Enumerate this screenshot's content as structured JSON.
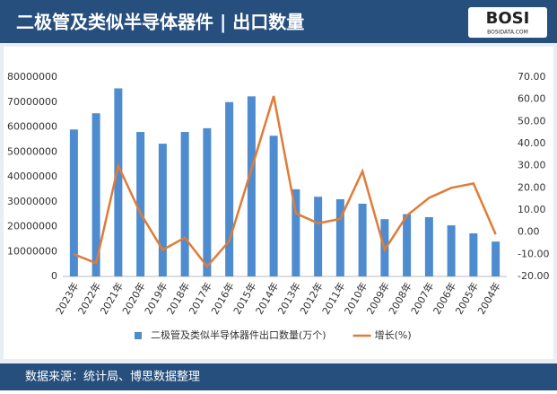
{
  "chart_data": {
    "type": "bar_line",
    "title": "二极管及类似半导体器件 | 出口数量",
    "logo": "BOSI",
    "logo_sub": "BOSIDATA.COM",
    "source": "数据来源：统计局、博思数据整理",
    "categories": [
      "2023年",
      "2022年",
      "2021年",
      "2020年",
      "2019年",
      "2018年",
      "2017年",
      "2016年",
      "2015年",
      "2014年",
      "2013年",
      "2012年",
      "2011年",
      "2010年",
      "2009年",
      "2008年",
      "2007年",
      "2006年",
      "2005年",
      "2004年"
    ],
    "series": [
      {
        "name": "二极管及类似半导体器件出口数量(万个)",
        "type": "bar",
        "color": "#4e8ccf",
        "values": [
          59000000,
          65500000,
          75500000,
          58000000,
          53300000,
          58000000,
          59500000,
          70000000,
          72300000,
          56500000,
          35000000,
          32000000,
          31000000,
          29200000,
          23000000,
          25000000,
          23800000,
          20500000,
          17300000,
          14000000
        ]
      },
      {
        "name": "增长(%)",
        "type": "line",
        "axis": "y2",
        "color": "#e07b39",
        "values": [
          -10,
          -14,
          30,
          8.5,
          -8,
          -2.5,
          -15.5,
          -4,
          28.5,
          61.5,
          8.5,
          4,
          6,
          27.5,
          -8,
          7.5,
          15.5,
          20,
          22,
          -1
        ]
      }
    ],
    "ylim": [
      0,
      80000000
    ],
    "yticks": [
      0,
      10000000,
      20000000,
      30000000,
      40000000,
      50000000,
      60000000,
      70000000,
      80000000
    ],
    "y2lim": [
      -20,
      70
    ],
    "y2ticks": [
      {
        "value": -20,
        "label": "-20.00"
      },
      {
        "value": -10,
        "label": "-10.00"
      },
      {
        "value": 0,
        "label": "0.00"
      },
      {
        "value": 10,
        "label": "10.00"
      },
      {
        "value": 20,
        "label": "20.00"
      },
      {
        "value": 30,
        "label": "30.00"
      },
      {
        "value": 40,
        "label": "40.00"
      },
      {
        "value": 50,
        "label": "50.00"
      },
      {
        "value": 60,
        "label": "60.00"
      },
      {
        "value": 70,
        "label": "70.00"
      }
    ]
  }
}
